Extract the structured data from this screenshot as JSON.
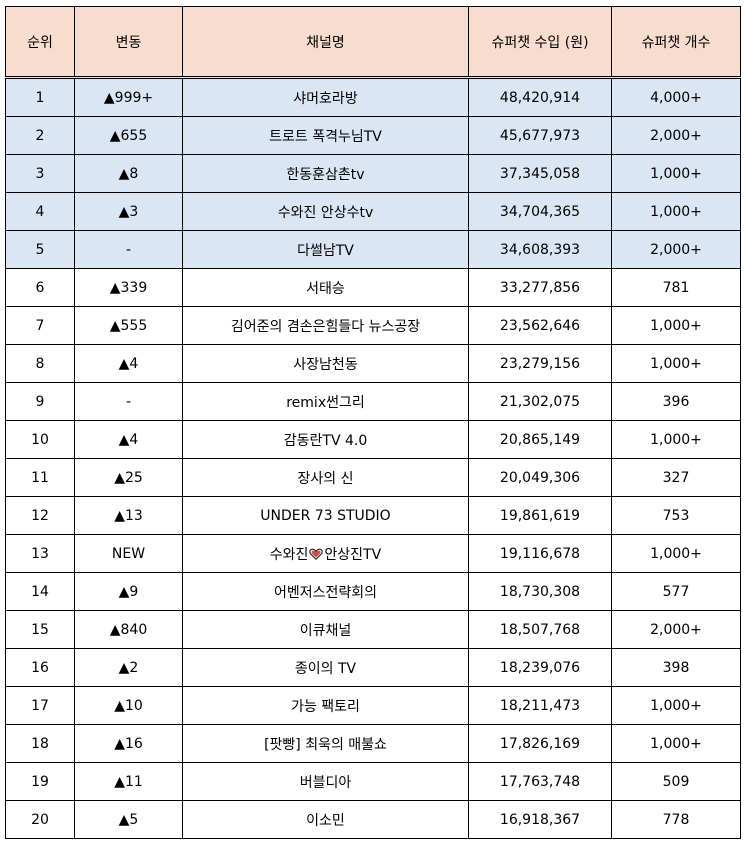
{
  "headers": [
    "순위",
    "변동",
    "채널명",
    "슈퍼챗 수입 (원)",
    "슈퍼챗 개수"
  ],
  "rows": [
    {
      "rank": "1",
      "change": "▲999+",
      "channel": "샤머호라방",
      "income": "48,420,914",
      "count": "4,000+",
      "highlight": true
    },
    {
      "rank": "2",
      "change": "▲655",
      "channel": "트로트 폭격누님TV",
      "income": "45,677,973",
      "count": "2,000+",
      "highlight": true
    },
    {
      "rank": "3",
      "change": "▲8",
      "channel": "한동훈삼촌tv",
      "income": "37,345,058",
      "count": "1,000+",
      "highlight": true
    },
    {
      "rank": "4",
      "change": "▲3",
      "channel": "수와진 안상수tv",
      "income": "34,704,365",
      "count": "1,000+",
      "highlight": true
    },
    {
      "rank": "5",
      "change": "-",
      "channel": "다썰남TV",
      "income": "34,608,393",
      "count": "2,000+",
      "highlight": true
    },
    {
      "rank": "6",
      "change": "▲339",
      "channel": "서태승",
      "income": "33,277,856",
      "count": "781",
      "highlight": false
    },
    {
      "rank": "7",
      "change": "▲555",
      "channel": "김어준의 겸손은힘들다 뉴스공장",
      "income": "23,562,646",
      "count": "1,000+",
      "highlight": false
    },
    {
      "rank": "8",
      "change": "▲4",
      "channel": "사장남천동",
      "income": "23,279,156",
      "count": "1,000+",
      "highlight": false
    },
    {
      "rank": "9",
      "change": "-",
      "channel": "remix썬그리",
      "income": "21,302,075",
      "count": "396",
      "highlight": false
    },
    {
      "rank": "10",
      "change": "▲4",
      "channel": "감동란TV 4.0",
      "income": "20,865,149",
      "count": "1,000+",
      "highlight": false
    },
    {
      "rank": "11",
      "change": "▲25",
      "channel": "장사의 신",
      "income": "20,049,306",
      "count": "327",
      "highlight": false
    },
    {
      "rank": "12",
      "change": "▲13",
      "channel": "UNDER 73 STUDIO",
      "income": "19,861,619",
      "count": "753",
      "highlight": false
    },
    {
      "rank": "13",
      "change": "NEW",
      "channel": "수와진",
      "channel_suffix": "안상진TV",
      "heart": true,
      "income": "19,116,678",
      "count": "1,000+",
      "highlight": false
    },
    {
      "rank": "14",
      "change": "▲9",
      "channel": "어벤저스전략회의",
      "income": "18,730,308",
      "count": "577",
      "highlight": false
    },
    {
      "rank": "15",
      "change": "▲840",
      "channel": "이큐채널",
      "income": "18,507,768",
      "count": "2,000+",
      "highlight": false
    },
    {
      "rank": "16",
      "change": "▲2",
      "channel": "종이의 TV",
      "income": "18,239,076",
      "count": "398",
      "highlight": false
    },
    {
      "rank": "17",
      "change": "▲10",
      "channel": "가능 팩토리",
      "income": "18,211,473",
      "count": "1,000+",
      "highlight": false
    },
    {
      "rank": "18",
      "change": "▲16",
      "channel": "[팟빵] 최욱의 매불쇼",
      "income": "17,826,169",
      "count": "1,000+",
      "highlight": false
    },
    {
      "rank": "19",
      "change": "▲11",
      "channel": "버블디아",
      "income": "17,763,748",
      "count": "509",
      "highlight": false
    },
    {
      "rank": "20",
      "change": "▲5",
      "channel": "이소민",
      "income": "16,918,367",
      "count": "778",
      "highlight": false
    }
  ]
}
